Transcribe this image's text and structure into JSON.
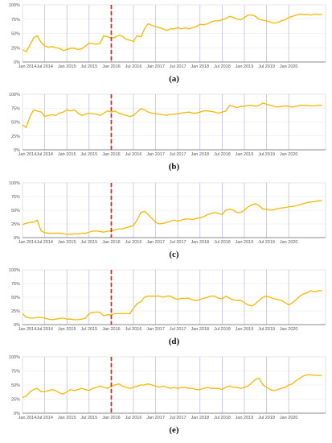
{
  "style": {
    "line_color": "#f5b800",
    "grid_color": "#b9b6e3",
    "hgrid_color": "#e6e6e6",
    "cut_color": "#e0241b",
    "axis_color": "#333333"
  },
  "chart_data": [
    {
      "type": "line",
      "panel_label": "(a)",
      "x_tick_labels": [
        "Jan 2014",
        "Jul 2014",
        "Jan 2015",
        "Jul 2015",
        "Jan 2016",
        "Jul 2016",
        "Jan 2017",
        "Jul 2017",
        "Jan 2018",
        "Jul 2018",
        "Jan 2019",
        "Jul 2019",
        "Jan 2020"
      ],
      "y_tick_labels": [
        "0%",
        "25%",
        "50%",
        "75%",
        "100%"
      ],
      "ylim": [
        0,
        100
      ],
      "xlim": [
        2014.0,
        2020.83
      ],
      "grid": "vertical-and-horizontal",
      "cutoff_x": 2016.0,
      "x": [
        2014.0,
        2014.08,
        2014.17,
        2014.25,
        2014.33,
        2014.42,
        2014.5,
        2014.58,
        2014.67,
        2014.75,
        2014.83,
        2014.92,
        2015.0,
        2015.08,
        2015.17,
        2015.25,
        2015.33,
        2015.42,
        2015.5,
        2015.58,
        2015.67,
        2015.75,
        2015.83,
        2015.92,
        2016.0,
        2016.08,
        2016.17,
        2016.25,
        2016.33,
        2016.42,
        2016.5,
        2016.58,
        2016.67,
        2016.75,
        2016.83,
        2016.92,
        2017.0,
        2017.08,
        2017.17,
        2017.25,
        2017.33,
        2017.42,
        2017.5,
        2017.58,
        2017.67,
        2017.75,
        2017.83,
        2017.92,
        2018.0,
        2018.08,
        2018.17,
        2018.25,
        2018.33,
        2018.42,
        2018.5,
        2018.58,
        2018.67,
        2018.75,
        2018.83,
        2018.92,
        2019.0,
        2019.08,
        2019.17,
        2019.25,
        2019.33,
        2019.42,
        2019.5,
        2019.58,
        2019.67,
        2019.75,
        2019.83,
        2019.92,
        2020.0,
        2020.08,
        2020.17,
        2020.25,
        2020.33,
        2020.42,
        2020.5,
        2020.58,
        2020.67,
        2020.75
      ],
      "y": [
        22,
        18,
        30,
        42,
        46,
        34,
        28,
        26,
        27,
        25,
        24,
        20,
        22,
        24,
        24,
        22,
        23,
        28,
        33,
        32,
        31,
        33,
        46,
        44,
        42,
        43,
        47,
        45,
        40,
        38,
        36,
        46,
        44,
        58,
        67,
        64,
        62,
        60,
        58,
        55,
        58,
        58,
        60,
        58,
        60,
        58,
        60,
        62,
        66,
        65,
        67,
        70,
        72,
        72,
        74,
        76,
        80,
        78,
        75,
        74,
        78,
        82,
        82,
        80,
        75,
        73,
        72,
        70,
        68,
        69,
        72,
        74,
        78,
        80,
        82,
        84,
        83,
        83,
        82,
        84,
        83,
        83
      ]
    },
    {
      "type": "line",
      "panel_label": "(b)",
      "x_tick_labels": [
        "Jan 2014",
        "Jul 2014",
        "Jan 2015",
        "Jul 2015",
        "Jan 2016",
        "Jul 2016",
        "Jan 2017",
        "Jul 2017",
        "Jan 2018",
        "Jul 2018",
        "Jan 2019",
        "Jul 2019",
        "Jan 2020"
      ],
      "y_tick_labels": [
        "0%",
        "25%",
        "50%",
        "75%",
        "100%"
      ],
      "ylim": [
        0,
        100
      ],
      "xlim": [
        2014.0,
        2020.83
      ],
      "grid": "vertical-and-horizontal",
      "cutoff_x": 2016.0,
      "x": [
        2014.0,
        2014.08,
        2014.17,
        2014.25,
        2014.33,
        2014.42,
        2014.5,
        2014.58,
        2014.67,
        2014.75,
        2014.83,
        2014.92,
        2015.0,
        2015.08,
        2015.17,
        2015.25,
        2015.33,
        2015.42,
        2015.5,
        2015.58,
        2015.67,
        2015.75,
        2015.83,
        2015.92,
        2016.0,
        2016.08,
        2016.17,
        2016.25,
        2016.33,
        2016.42,
        2016.5,
        2016.58,
        2016.67,
        2016.75,
        2016.83,
        2016.92,
        2017.0,
        2017.08,
        2017.17,
        2017.25,
        2017.33,
        2017.42,
        2017.5,
        2017.58,
        2017.67,
        2017.75,
        2017.83,
        2017.92,
        2018.0,
        2018.08,
        2018.17,
        2018.25,
        2018.33,
        2018.42,
        2018.5,
        2018.58,
        2018.67,
        2018.75,
        2018.83,
        2018.92,
        2019.0,
        2019.08,
        2019.17,
        2019.25,
        2019.33,
        2019.42,
        2019.5,
        2019.58,
        2019.67,
        2019.75,
        2019.83,
        2019.92,
        2020.0,
        2020.08,
        2020.17,
        2020.25,
        2020.33,
        2020.42,
        2020.5,
        2020.58,
        2020.67,
        2020.75
      ],
      "y": [
        45,
        40,
        60,
        72,
        70,
        68,
        60,
        62,
        63,
        62,
        66,
        68,
        72,
        70,
        72,
        66,
        62,
        64,
        66,
        65,
        64,
        62,
        66,
        70,
        68,
        70,
        66,
        64,
        62,
        60,
        62,
        68,
        74,
        72,
        68,
        66,
        65,
        64,
        63,
        62,
        64,
        64,
        65,
        66,
        67,
        68,
        66,
        66,
        68,
        70,
        70,
        69,
        68,
        66,
        68,
        70,
        80,
        78,
        76,
        78,
        78,
        80,
        80,
        78,
        80,
        84,
        82,
        80,
        78,
        77,
        78,
        79,
        78,
        77,
        78,
        80,
        80,
        80,
        79,
        79,
        80,
        80
      ]
    },
    {
      "type": "line",
      "panel_label": "(c)",
      "x_tick_labels": [
        "Jan 2014",
        "Jul 2014",
        "Jan 2015",
        "Jul 2015",
        "Jan 2016",
        "Jul 2016",
        "Jan 2017",
        "Jul 2017",
        "Jan 2018",
        "Jul 2018",
        "Jan 2019",
        "Jul 2019",
        "Jan 2020"
      ],
      "y_tick_labels": [
        "0%",
        "25%",
        "50%",
        "75%",
        "100%"
      ],
      "ylim": [
        0,
        100
      ],
      "xlim": [
        2014.0,
        2020.83
      ],
      "grid": "vertical-and-horizontal",
      "cutoff_x": 2016.0,
      "x": [
        2014.0,
        2014.08,
        2014.17,
        2014.25,
        2014.33,
        2014.42,
        2014.5,
        2014.58,
        2014.67,
        2014.75,
        2014.83,
        2014.92,
        2015.0,
        2015.08,
        2015.17,
        2015.25,
        2015.33,
        2015.42,
        2015.5,
        2015.58,
        2015.67,
        2015.75,
        2015.83,
        2015.92,
        2016.0,
        2016.08,
        2016.17,
        2016.25,
        2016.33,
        2016.42,
        2016.5,
        2016.58,
        2016.67,
        2016.75,
        2016.83,
        2016.92,
        2017.0,
        2017.08,
        2017.17,
        2017.25,
        2017.33,
        2017.42,
        2017.5,
        2017.58,
        2017.67,
        2017.75,
        2017.83,
        2017.92,
        2018.0,
        2018.08,
        2018.17,
        2018.25,
        2018.33,
        2018.42,
        2018.5,
        2018.58,
        2018.67,
        2018.75,
        2018.83,
        2018.92,
        2019.0,
        2019.08,
        2019.17,
        2019.25,
        2019.33,
        2019.42,
        2019.5,
        2019.58,
        2019.67,
        2019.75,
        2019.83,
        2019.92,
        2020.0,
        2020.08,
        2020.17,
        2020.25,
        2020.33,
        2020.42,
        2020.5,
        2020.58,
        2020.67,
        2020.75
      ],
      "y": [
        24,
        26,
        28,
        28,
        32,
        12,
        9,
        8,
        8,
        8,
        8,
        7,
        6,
        6,
        7,
        7,
        8,
        8,
        10,
        12,
        12,
        11,
        10,
        12,
        12,
        14,
        16,
        16,
        18,
        20,
        22,
        32,
        46,
        48,
        42,
        35,
        28,
        25,
        26,
        28,
        30,
        32,
        30,
        32,
        34,
        34,
        33,
        35,
        36,
        38,
        42,
        44,
        46,
        44,
        42,
        50,
        52,
        50,
        46,
        46,
        50,
        56,
        60,
        62,
        58,
        52,
        52,
        50,
        51,
        53,
        54,
        55,
        56,
        57,
        58,
        60,
        62,
        64,
        65,
        66,
        67,
        68
      ]
    },
    {
      "type": "line",
      "panel_label": "(d)",
      "x_tick_labels": [
        "Jan 2014",
        "Jul 2014",
        "Jan 2015",
        "Jul 2015",
        "Jan 2016",
        "Jul 2016",
        "Jan 2017",
        "Jul 2017",
        "Jan 2018",
        "Jul 2018",
        "Jan 2019",
        "Jul 2019",
        "Jan 2020"
      ],
      "y_tick_labels": [
        "0%",
        "25%",
        "50%",
        "75%",
        "100%"
      ],
      "ylim": [
        0,
        100
      ],
      "xlim": [
        2014.0,
        2020.83
      ],
      "grid": "vertical-and-horizontal",
      "cutoff_x": 2016.0,
      "x": [
        2014.0,
        2014.08,
        2014.17,
        2014.25,
        2014.33,
        2014.42,
        2014.5,
        2014.58,
        2014.67,
        2014.75,
        2014.83,
        2014.92,
        2015.0,
        2015.08,
        2015.17,
        2015.25,
        2015.33,
        2015.42,
        2015.5,
        2015.58,
        2015.67,
        2015.75,
        2015.83,
        2015.92,
        2016.0,
        2016.08,
        2016.17,
        2016.25,
        2016.33,
        2016.42,
        2016.5,
        2016.58,
        2016.67,
        2016.75,
        2016.83,
        2016.92,
        2017.0,
        2017.08,
        2017.17,
        2017.25,
        2017.33,
        2017.42,
        2017.5,
        2017.58,
        2017.67,
        2017.75,
        2017.83,
        2017.92,
        2018.0,
        2018.08,
        2018.17,
        2018.25,
        2018.33,
        2018.42,
        2018.5,
        2018.58,
        2018.67,
        2018.75,
        2018.83,
        2018.92,
        2019.0,
        2019.08,
        2019.17,
        2019.25,
        2019.33,
        2019.42,
        2019.5,
        2019.58,
        2019.67,
        2019.75,
        2019.83,
        2019.92,
        2020.0,
        2020.08,
        2020.17,
        2020.25,
        2020.33,
        2020.42,
        2020.5,
        2020.58,
        2020.67,
        2020.75
      ],
      "y": [
        20,
        14,
        12,
        12,
        13,
        13,
        12,
        10,
        9,
        10,
        11,
        12,
        10,
        10,
        9,
        9,
        10,
        12,
        20,
        22,
        23,
        22,
        16,
        18,
        18,
        20,
        20,
        20,
        20,
        20,
        30,
        38,
        42,
        50,
        52,
        52,
        52,
        52,
        50,
        52,
        52,
        48,
        46,
        48,
        48,
        48,
        45,
        44,
        46,
        48,
        50,
        52,
        52,
        48,
        47,
        52,
        48,
        45,
        44,
        44,
        40,
        36,
        34,
        38,
        44,
        50,
        52,
        50,
        47,
        46,
        44,
        40,
        36,
        40,
        46,
        52,
        56,
        58,
        62,
        60,
        62,
        62
      ]
    },
    {
      "type": "line",
      "panel_label": "(e)",
      "x_tick_labels": [
        "Jan 2014",
        "Jul 2014",
        "Jan 2015",
        "Jul 2015",
        "Jan 2016",
        "Jul 2016",
        "Jan 2017",
        "Jul 2017",
        "Jan 2018",
        "Jul 2018",
        "Jan 2019",
        "Jul 2019",
        "Jan 2020"
      ],
      "y_tick_labels": [
        "0%",
        "25%",
        "50%",
        "75%",
        "100%"
      ],
      "ylim": [
        0,
        100
      ],
      "xlim": [
        2014.0,
        2020.83
      ],
      "grid": "vertical-and-horizontal",
      "cutoff_x": 2016.0,
      "x": [
        2014.0,
        2014.08,
        2014.17,
        2014.25,
        2014.33,
        2014.42,
        2014.5,
        2014.58,
        2014.67,
        2014.75,
        2014.83,
        2014.92,
        2015.0,
        2015.08,
        2015.17,
        2015.25,
        2015.33,
        2015.42,
        2015.5,
        2015.58,
        2015.67,
        2015.75,
        2015.83,
        2015.92,
        2016.0,
        2016.08,
        2016.17,
        2016.25,
        2016.33,
        2016.42,
        2016.5,
        2016.58,
        2016.67,
        2016.75,
        2016.83,
        2016.92,
        2017.0,
        2017.08,
        2017.17,
        2017.25,
        2017.33,
        2017.42,
        2017.5,
        2017.58,
        2017.67,
        2017.75,
        2017.83,
        2017.92,
        2018.0,
        2018.08,
        2018.17,
        2018.25,
        2018.33,
        2018.42,
        2018.5,
        2018.58,
        2018.67,
        2018.75,
        2018.83,
        2018.92,
        2019.0,
        2019.08,
        2019.17,
        2019.25,
        2019.33,
        2019.42,
        2019.5,
        2019.58,
        2019.67,
        2019.75,
        2019.83,
        2019.92,
        2020.0,
        2020.08,
        2020.17,
        2020.25,
        2020.33,
        2020.42,
        2020.5,
        2020.58,
        2020.67,
        2020.75
      ],
      "y": [
        28,
        30,
        38,
        42,
        44,
        38,
        38,
        40,
        42,
        40,
        36,
        34,
        38,
        42,
        40,
        42,
        44,
        42,
        40,
        44,
        46,
        48,
        46,
        44,
        48,
        50,
        52,
        48,
        46,
        44,
        46,
        48,
        50,
        50,
        52,
        50,
        48,
        46,
        48,
        46,
        44,
        46,
        44,
        46,
        46,
        44,
        44,
        42,
        42,
        44,
        46,
        44,
        44,
        44,
        42,
        46,
        48,
        46,
        46,
        44,
        46,
        48,
        54,
        60,
        62,
        50,
        46,
        42,
        40,
        42,
        44,
        46,
        50,
        52,
        58,
        62,
        66,
        68,
        68,
        67,
        67,
        67
      ]
    }
  ]
}
